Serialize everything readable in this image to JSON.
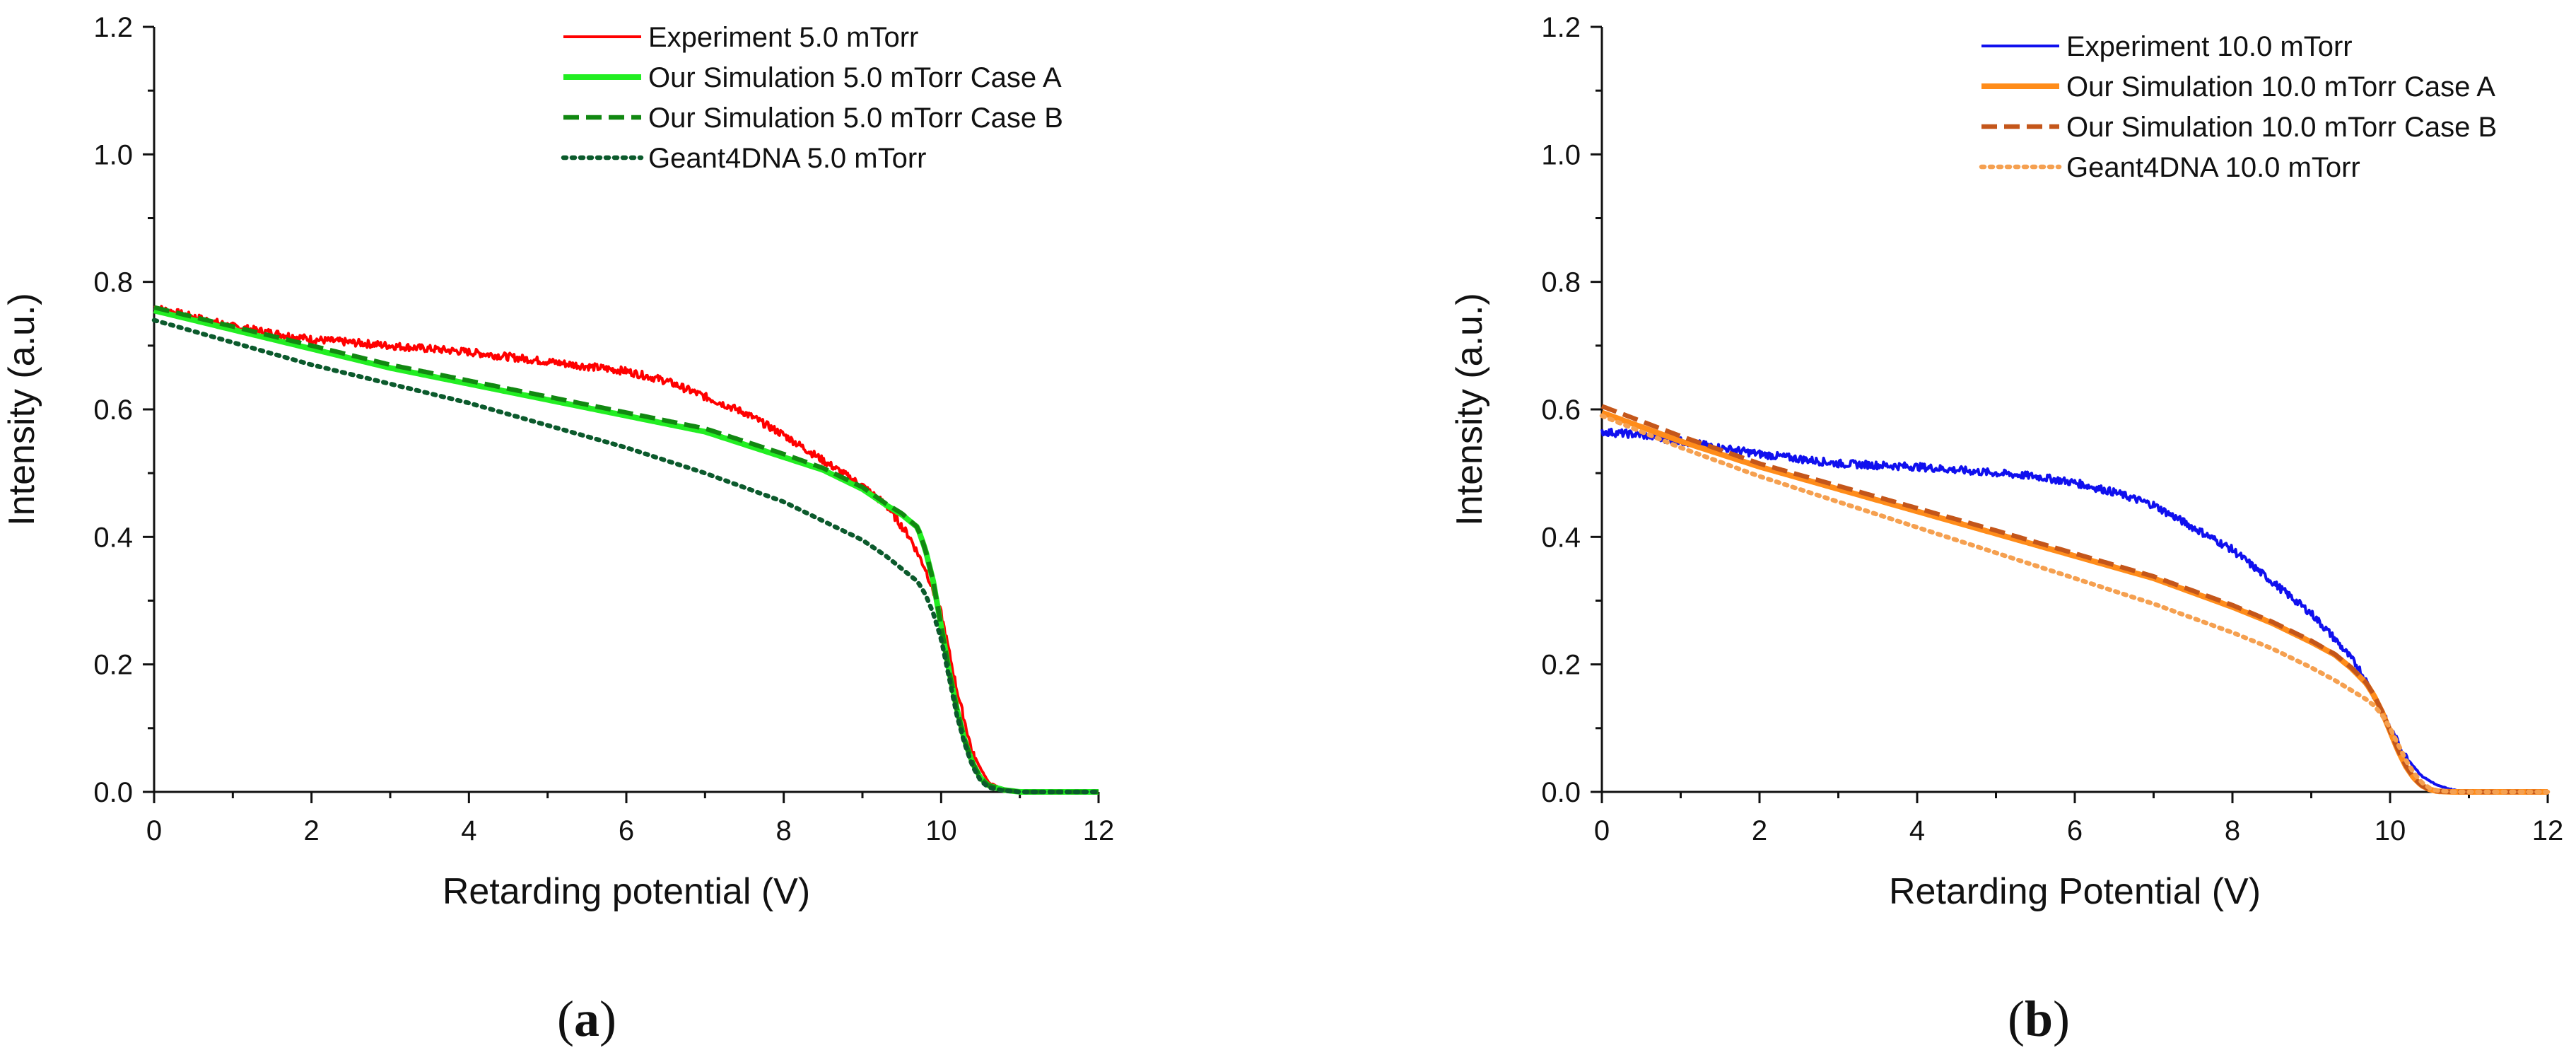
{
  "chart_data": [
    {
      "type": "line",
      "panel_label": "a",
      "xlabel": "Retarding potential (V)",
      "ylabel": "Intensity (a.u.)",
      "xlim": [
        0,
        12
      ],
      "ylim": [
        0,
        1.2
      ],
      "xticks": [
        "0",
        "2",
        "4",
        "6",
        "8",
        "10",
        "12"
      ],
      "yticks": [
        "0.0",
        "0.2",
        "0.4",
        "0.6",
        "0.8",
        "1.0",
        "1.2"
      ],
      "legend_position": "top-right",
      "series": [
        {
          "name": "Experiment 5.0 mTorr",
          "color": "#ff0000",
          "style": "solid",
          "noisy": true,
          "x": [
            0,
            1,
            2,
            3,
            4,
            5,
            6,
            6.5,
            7,
            7.5,
            8,
            8.5,
            9,
            9.3,
            9.6,
            9.8,
            10,
            10.2,
            10.4,
            10.6,
            10.8,
            11,
            12
          ],
          "y": [
            0.76,
            0.73,
            0.71,
            0.7,
            0.69,
            0.675,
            0.66,
            0.645,
            0.62,
            0.595,
            0.56,
            0.52,
            0.48,
            0.45,
            0.4,
            0.35,
            0.28,
            0.16,
            0.06,
            0.015,
            0.003,
            0,
            0
          ]
        },
        {
          "name": "Our Simulation 5.0 mTorr Case A",
          "color": "#22ee22",
          "style": "solid",
          "x": [
            0,
            1,
            2,
            3,
            4,
            5,
            6,
            7,
            8,
            8.5,
            9,
            9.3,
            9.5,
            9.7,
            9.8,
            9.9,
            10,
            10.1,
            10.2,
            10.3,
            10.4,
            10.5,
            10.6,
            10.8,
            11,
            12
          ],
          "y": [
            0.755,
            0.725,
            0.695,
            0.665,
            0.64,
            0.615,
            0.59,
            0.565,
            0.525,
            0.505,
            0.475,
            0.45,
            0.435,
            0.415,
            0.38,
            0.33,
            0.26,
            0.19,
            0.13,
            0.08,
            0.045,
            0.022,
            0.01,
            0.003,
            0,
            0
          ]
        },
        {
          "name": "Our Simulation 5.0 mTorr Case B",
          "color": "#118811",
          "style": "dashed",
          "x": [
            0,
            1,
            2,
            3,
            4,
            5,
            6,
            7,
            8,
            8.5,
            9,
            9.3,
            9.5,
            9.7,
            9.8,
            9.9,
            10,
            10.1,
            10.2,
            10.3,
            10.4,
            10.5,
            10.6,
            10.8,
            11,
            12
          ],
          "y": [
            0.76,
            0.73,
            0.7,
            0.67,
            0.645,
            0.62,
            0.595,
            0.57,
            0.53,
            0.508,
            0.478,
            0.452,
            0.437,
            0.415,
            0.38,
            0.33,
            0.26,
            0.19,
            0.13,
            0.08,
            0.045,
            0.022,
            0.01,
            0.003,
            0,
            0
          ]
        },
        {
          "name": "Geant4DNA  5.0 mTorr",
          "color": "#0b5a2c",
          "style": "dotted",
          "x": [
            0,
            1,
            2,
            3,
            4,
            5,
            6,
            7,
            8,
            8.5,
            9,
            9.3,
            9.5,
            9.7,
            9.8,
            9.9,
            10,
            10.1,
            10.2,
            10.3,
            10.4,
            10.5,
            10.6,
            10.8,
            11,
            12
          ],
          "y": [
            0.74,
            0.705,
            0.67,
            0.64,
            0.61,
            0.575,
            0.54,
            0.5,
            0.455,
            0.425,
            0.395,
            0.37,
            0.35,
            0.33,
            0.31,
            0.28,
            0.24,
            0.18,
            0.12,
            0.075,
            0.04,
            0.018,
            0.007,
            0.002,
            0,
            0
          ]
        }
      ]
    },
    {
      "type": "line",
      "panel_label": "b",
      "xlabel": "Retarding Potential (V)",
      "ylabel": "Intensity (a.u.)",
      "xlim": [
        0,
        12
      ],
      "ylim": [
        0,
        1.2
      ],
      "xticks": [
        "0",
        "2",
        "4",
        "6",
        "8",
        "10",
        "12"
      ],
      "yticks": [
        "0.0",
        "0.2",
        "0.4",
        "0.6",
        "0.8",
        "1.0",
        "1.2"
      ],
      "legend_position": "top-right",
      "series": [
        {
          "name": "Experiment 10.0 mTorr",
          "color": "#1010ee",
          "style": "solid",
          "noisy": true,
          "x": [
            0,
            0.5,
            1,
            1.5,
            2,
            3,
            4,
            5,
            5.5,
            6,
            6.5,
            7,
            7.5,
            8,
            8.5,
            9,
            9.3,
            9.6,
            9.8,
            10,
            10.2,
            10.4,
            10.6,
            10.8,
            11,
            12
          ],
          "y": [
            0.565,
            0.56,
            0.55,
            0.54,
            0.53,
            0.515,
            0.51,
            0.5,
            0.495,
            0.485,
            0.47,
            0.45,
            0.415,
            0.38,
            0.33,
            0.28,
            0.24,
            0.195,
            0.15,
            0.1,
            0.055,
            0.025,
            0.01,
            0.003,
            0,
            0
          ]
        },
        {
          "name": "Our Simulation 10.0 mTorr Case A",
          "color": "#ff8c1a",
          "style": "solid",
          "x": [
            0,
            1,
            2,
            3,
            4,
            5,
            6,
            7,
            8,
            8.5,
            9,
            9.3,
            9.5,
            9.7,
            9.8,
            9.9,
            10,
            10.1,
            10.2,
            10.3,
            10.4,
            10.5,
            10.6,
            10.8,
            11,
            12
          ],
          "y": [
            0.595,
            0.55,
            0.51,
            0.475,
            0.44,
            0.405,
            0.37,
            0.335,
            0.29,
            0.265,
            0.235,
            0.215,
            0.195,
            0.17,
            0.15,
            0.125,
            0.095,
            0.065,
            0.04,
            0.022,
            0.01,
            0.004,
            0.001,
            0,
            0,
            0
          ]
        },
        {
          "name": "Our Simulation 10.0 mTorr Case B",
          "color": "#c4561a",
          "style": "dashed",
          "x": [
            0,
            1,
            2,
            3,
            4,
            5,
            6,
            7,
            8,
            8.5,
            9,
            9.3,
            9.5,
            9.7,
            9.8,
            9.9,
            10,
            10.1,
            10.2,
            10.3,
            10.4,
            10.5,
            10.6,
            10.8,
            11,
            12
          ],
          "y": [
            0.605,
            0.558,
            0.515,
            0.48,
            0.445,
            0.41,
            0.374,
            0.338,
            0.293,
            0.267,
            0.237,
            0.216,
            0.196,
            0.171,
            0.151,
            0.126,
            0.096,
            0.066,
            0.041,
            0.022,
            0.01,
            0.004,
            0.001,
            0,
            0,
            0
          ]
        },
        {
          "name": "Geant4DNA  10.0 mTorr",
          "color": "#f5a050",
          "style": "dotted",
          "x": [
            0,
            1,
            2,
            3,
            4,
            5,
            6,
            7,
            8,
            8.5,
            9,
            9.3,
            9.5,
            9.7,
            9.8,
            9.9,
            10,
            10.1,
            10.2,
            10.3,
            10.4,
            10.5,
            10.6,
            10.8,
            11,
            12
          ],
          "y": [
            0.59,
            0.54,
            0.495,
            0.455,
            0.415,
            0.375,
            0.335,
            0.295,
            0.25,
            0.225,
            0.195,
            0.175,
            0.16,
            0.145,
            0.135,
            0.12,
            0.1,
            0.075,
            0.05,
            0.03,
            0.015,
            0.006,
            0.002,
            0,
            0,
            0
          ]
        }
      ]
    }
  ]
}
